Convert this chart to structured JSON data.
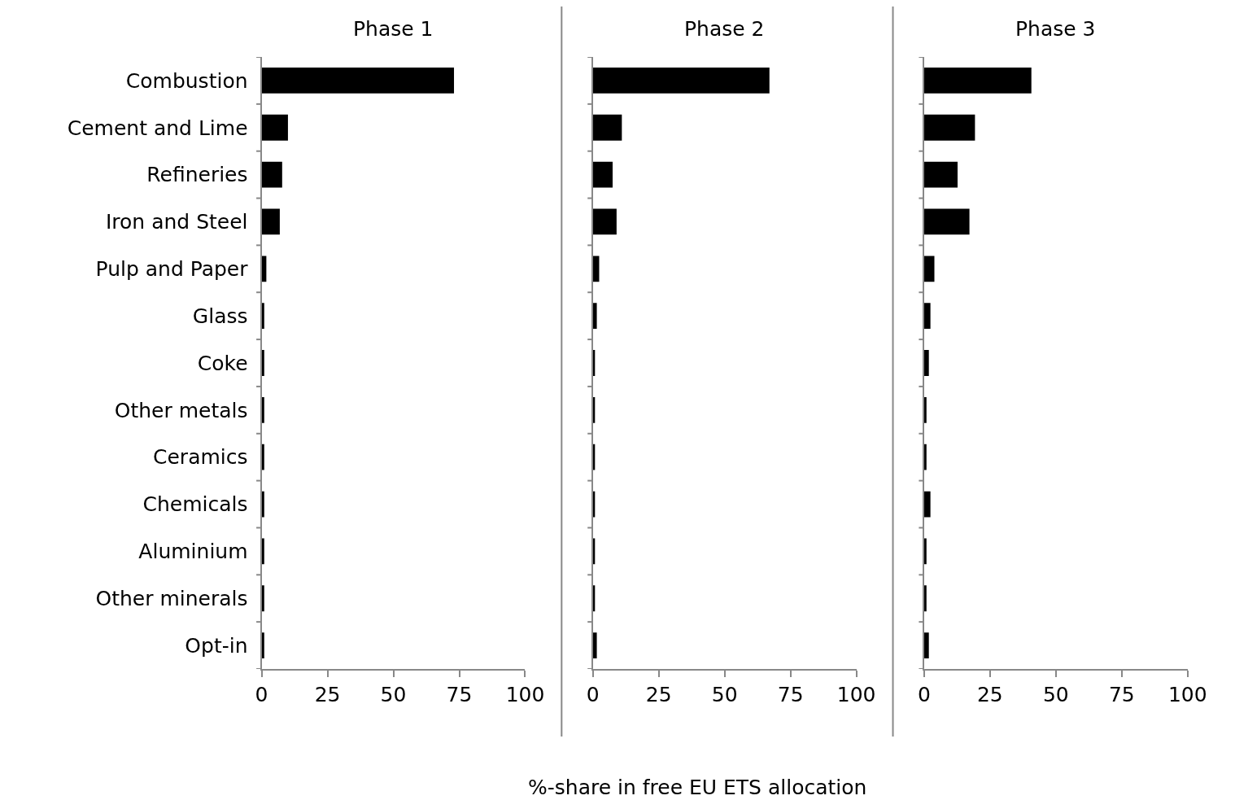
{
  "chart_data": [
    {
      "type": "bar",
      "title": "Phase 1",
      "orientation": "horizontal",
      "color": "#000000",
      "categories": [
        "Combustion",
        "Cement and Lime",
        "Refineries",
        "Iron and Steel",
        "Pulp and Paper",
        "Glass",
        "Coke",
        "Other metals",
        "Ceramics",
        "Chemicals",
        "Aluminium",
        "Other minerals",
        "Opt-in"
      ],
      "values": [
        73,
        10,
        7.8,
        6.9,
        1.8,
        1,
        1,
        1,
        1,
        1,
        1,
        1,
        1
      ],
      "xlim": [
        0,
        100
      ],
      "xticks": [
        0,
        25,
        50,
        75,
        100
      ]
    },
    {
      "type": "bar",
      "title": "Phase 2",
      "orientation": "horizontal",
      "color": "#000000",
      "tick_labels": "x",
      "xlabel": "%-share in free EU ETS allocation",
      "categories": [
        null,
        null,
        null,
        null,
        null,
        null,
        null,
        null,
        null,
        null,
        null,
        null,
        null
      ],
      "values": [
        67,
        11,
        7.5,
        9,
        2.4,
        1.5,
        0.8,
        0.8,
        0.8,
        0.8,
        0.8,
        0.8,
        1.5
      ],
      "xlim": [
        0,
        100
      ],
      "xticks": [
        0,
        25,
        50,
        75,
        100
      ]
    },
    {
      "type": "bar",
      "title": "Phase 3",
      "orientation": "horizontal",
      "color": "#000000",
      "tick_labels": "x",
      "categories": [
        null,
        null,
        null,
        null,
        null,
        null,
        null,
        null,
        null,
        null,
        null,
        null,
        null
      ],
      "values": [
        40.7,
        19.3,
        12.7,
        17.2,
        3.9,
        2.4,
        1.8,
        0.9,
        0.9,
        2.4,
        0.9,
        0.9,
        1.8
      ],
      "xlim": [
        0,
        100
      ],
      "xticks": [
        0,
        25,
        50,
        75,
        100
      ]
    }
  ]
}
